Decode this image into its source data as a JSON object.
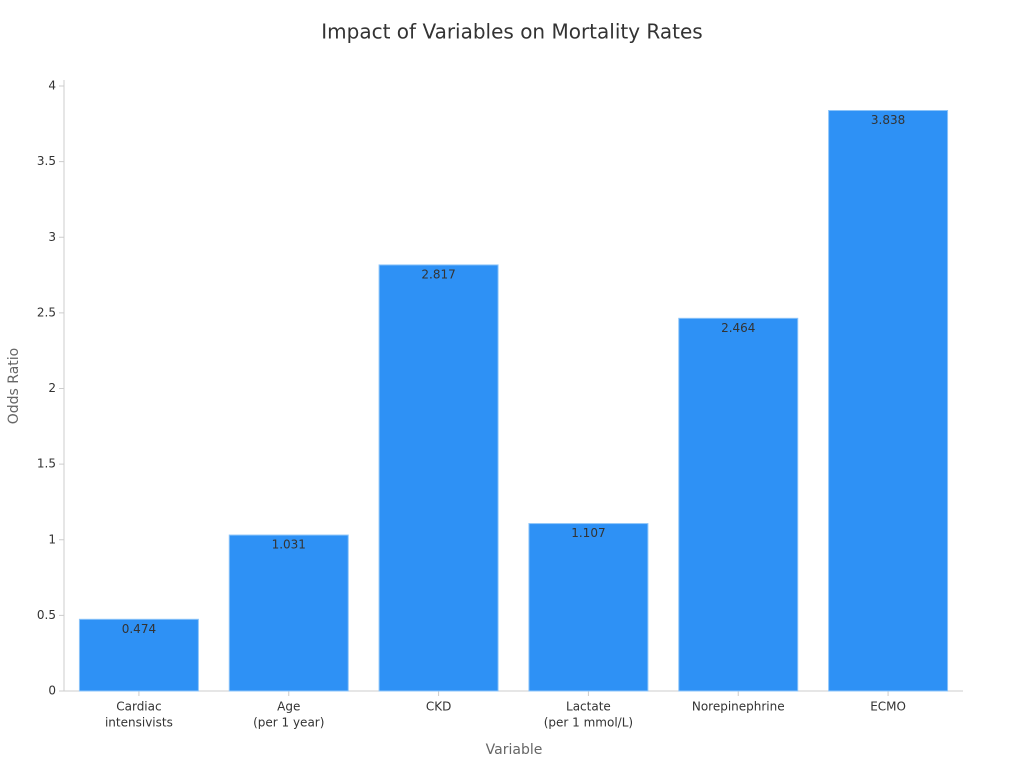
{
  "chart_data": {
    "type": "bar",
    "title": "Impact of Variables on Mortality Rates",
    "x_label": "Variable",
    "y_label": "Odds Ratio",
    "categories": [
      [
        "Cardiac",
        "intensivists"
      ],
      [
        "Age",
        "(per 1 year)"
      ],
      [
        "CKD"
      ],
      [
        "Lactate",
        "(per 1 mmol/L)"
      ],
      [
        "Norepinephrine"
      ],
      [
        "ECMO"
      ]
    ],
    "values": [
      0.474,
      1.031,
      2.817,
      1.107,
      2.464,
      3.838
    ],
    "color": "#2e91f5",
    "ylim": [
      0,
      4
    ],
    "yticks": [
      0,
      0.5,
      1,
      1.5,
      2,
      2.5,
      3,
      3.5,
      4
    ],
    "grid": false
  }
}
